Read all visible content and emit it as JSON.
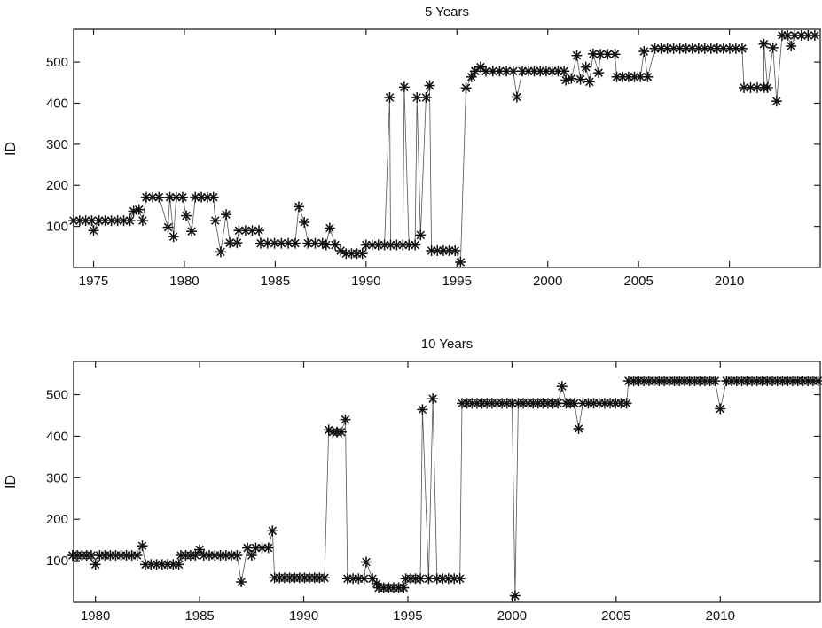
{
  "chart_data": [
    {
      "type": "scatter",
      "title": "5 Years",
      "xlabel": "",
      "ylabel": "ID",
      "xlim": [
        1973.9,
        2015.0
      ],
      "ylim": [
        0,
        580
      ],
      "xticks": [
        1975,
        1980,
        1985,
        1990,
        1995,
        2000,
        2005,
        2010
      ],
      "yticks": [
        100,
        200,
        300,
        400,
        500
      ],
      "marker": "asterisk",
      "connected": true,
      "point_step_years": 0.35,
      "runs": [
        [
          1973.9,
          1974.9,
          114
        ],
        [
          1975.0,
          1975.0,
          90
        ],
        [
          1975.3,
          1977.0,
          114
        ],
        [
          1977.2,
          1977.2,
          137
        ],
        [
          1977.5,
          1977.5,
          141
        ],
        [
          1977.7,
          1977.7,
          114
        ],
        [
          1977.9,
          1978.6,
          171
        ],
        [
          1979.1,
          1979.1,
          98
        ],
        [
          1979.4,
          1979.4,
          75
        ],
        [
          1979.2,
          1979.9,
          171
        ],
        [
          1980.1,
          1980.1,
          126
        ],
        [
          1980.4,
          1980.4,
          88
        ],
        [
          1980.6,
          1981.6,
          171
        ],
        [
          1981.7,
          1981.7,
          114
        ],
        [
          1982.0,
          1982.0,
          38
        ],
        [
          1982.3,
          1982.3,
          129
        ],
        [
          1982.5,
          1982.9,
          60
        ],
        [
          1983.0,
          1984.1,
          90
        ],
        [
          1984.2,
          1986.1,
          59
        ],
        [
          1986.3,
          1986.3,
          148
        ],
        [
          1986.6,
          1986.6,
          110
        ],
        [
          1986.8,
          1987.6,
          59
        ],
        [
          1987.8,
          1987.8,
          55
        ],
        [
          1988.0,
          1988.0,
          96
        ],
        [
          1988.3,
          1988.3,
          55
        ],
        [
          1988.6,
          1988.6,
          41
        ],
        [
          1988.9,
          1989.8,
          34
        ],
        [
          1990.0,
          1992.7,
          55
        ],
        [
          1993.0,
          1993.0,
          79
        ],
        [
          1993.6,
          1994.9,
          41
        ],
        [
          1995.2,
          1995.2,
          13
        ],
        [
          1991.3,
          1991.3,
          414
        ],
        [
          1992.1,
          1992.1,
          439
        ],
        [
          1992.8,
          1992.8,
          414
        ],
        [
          1993.3,
          1993.3,
          414
        ],
        [
          1993.5,
          1993.5,
          443
        ],
        [
          1995.5,
          1995.5,
          437
        ],
        [
          1995.8,
          1995.8,
          464
        ],
        [
          1996.0,
          1996.0,
          478
        ],
        [
          1996.3,
          1996.3,
          488
        ],
        [
          1996.6,
          1998.1,
          478
        ],
        [
          1998.3,
          1998.3,
          415
        ],
        [
          1998.6,
          2000.9,
          478
        ],
        [
          2001.0,
          2001.0,
          456
        ],
        [
          2001.3,
          2001.3,
          460
        ],
        [
          2001.6,
          2001.6,
          516
        ],
        [
          2001.8,
          2001.8,
          458
        ],
        [
          2002.1,
          2002.1,
          488
        ],
        [
          2002.3,
          2002.3,
          452
        ],
        [
          2002.5,
          2002.5,
          520
        ],
        [
          2002.8,
          2002.8,
          474
        ],
        [
          2002.9,
          2003.7,
          519
        ],
        [
          2003.8,
          2005.1,
          464
        ],
        [
          2005.5,
          2005.5,
          464
        ],
        [
          2005.3,
          2005.3,
          526
        ],
        [
          2005.9,
          2010.7,
          533
        ],
        [
          2010.8,
          2011.9,
          438
        ],
        [
          2012.1,
          2012.1,
          438
        ],
        [
          2012.6,
          2012.6,
          405
        ],
        [
          2011.9,
          2011.9,
          544
        ],
        [
          2012.4,
          2012.4,
          535
        ],
        [
          2012.9,
          2013.2,
          565
        ],
        [
          2013.4,
          2013.4,
          539
        ],
        [
          2013.6,
          2014.7,
          565
        ]
      ]
    },
    {
      "type": "scatter",
      "title": "10 Years",
      "xlabel": "",
      "ylabel": "ID",
      "xlim": [
        1978.95,
        2014.8
      ],
      "ylim": [
        0,
        580
      ],
      "xticks": [
        1980,
        1985,
        1990,
        1995,
        2000,
        2005,
        2010
      ],
      "yticks": [
        100,
        200,
        300,
        400,
        500
      ],
      "marker": "asterisk",
      "connected": true,
      "point_step_years": 0.25,
      "runs": [
        [
          1978.9,
          1979.8,
          113
        ],
        [
          1980.0,
          1980.0,
          91
        ],
        [
          1980.2,
          1982.0,
          113
        ],
        [
          1982.25,
          1982.25,
          136
        ],
        [
          1982.4,
          1984.0,
          91
        ],
        [
          1984.1,
          1984.8,
          113
        ],
        [
          1985.0,
          1985.0,
          127
        ],
        [
          1985.2,
          1986.8,
          113
        ],
        [
          1987.0,
          1987.0,
          49
        ],
        [
          1987.3,
          1987.3,
          131
        ],
        [
          1987.5,
          1987.5,
          113
        ],
        [
          1987.7,
          1988.3,
          131
        ],
        [
          1988.5,
          1988.5,
          172
        ],
        [
          1988.6,
          1991.0,
          59
        ],
        [
          1991.2,
          1991.2,
          415
        ],
        [
          1991.4,
          1991.8,
          410
        ],
        [
          1992.0,
          1992.0,
          440
        ],
        [
          1992.1,
          1992.9,
          57
        ],
        [
          1993.0,
          1993.0,
          97
        ],
        [
          1993.3,
          1993.3,
          57
        ],
        [
          1993.5,
          1993.5,
          45
        ],
        [
          1993.6,
          1994.8,
          35
        ],
        [
          1994.9,
          1995.6,
          57
        ],
        [
          1996.0,
          1996.0,
          57
        ],
        [
          1996.4,
          1997.5,
          57
        ],
        [
          1995.7,
          1995.7,
          464
        ],
        [
          1996.2,
          1996.2,
          490
        ],
        [
          1997.6,
          2000.0,
          479
        ],
        [
          2000.15,
          2000.15,
          16
        ],
        [
          2000.3,
          2002.2,
          479
        ],
        [
          2002.4,
          2002.4,
          520
        ],
        [
          2002.6,
          2003.0,
          479
        ],
        [
          2003.2,
          2003.2,
          418
        ],
        [
          2003.4,
          2005.5,
          479
        ],
        [
          2005.6,
          2009.75,
          533
        ],
        [
          2010.0,
          2010.0,
          466
        ],
        [
          2010.3,
          2014.7,
          533
        ]
      ]
    }
  ]
}
